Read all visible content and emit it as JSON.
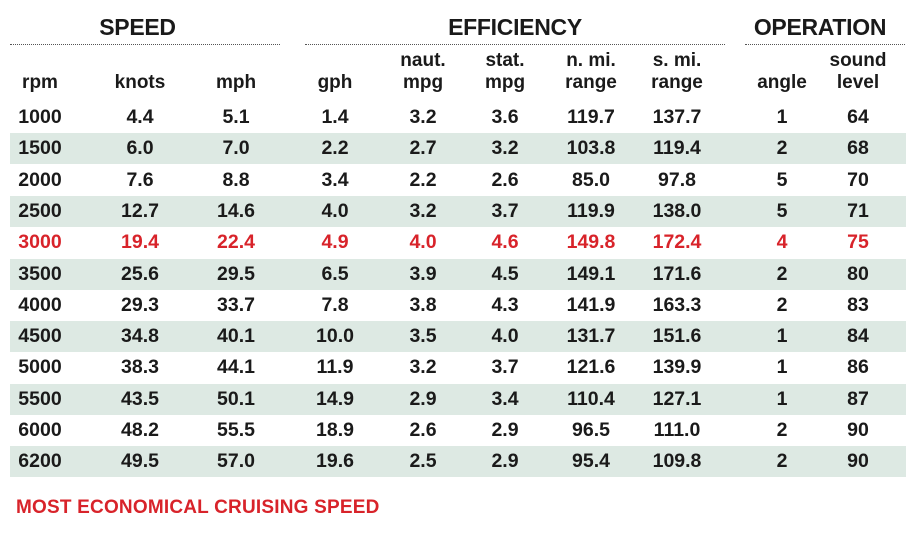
{
  "chart_data": {
    "type": "table",
    "groups": [
      {
        "label": "SPEED"
      },
      {
        "label": "EFFICIENCY"
      },
      {
        "label": "OPERATION"
      }
    ],
    "columns": [
      "rpm",
      "knots",
      "mph",
      "gph",
      "naut.\nmpg",
      "stat.\nmpg",
      "n. mi.\nrange",
      "s. mi.\nrange",
      "angle",
      "sound\nlevel"
    ],
    "rows": [
      [
        "1000",
        "4.4",
        "5.1",
        "1.4",
        "3.2",
        "3.6",
        "119.7",
        "137.7",
        "1",
        "64"
      ],
      [
        "1500",
        "6.0",
        "7.0",
        "2.2",
        "2.7",
        "3.2",
        "103.8",
        "119.4",
        "2",
        "68"
      ],
      [
        "2000",
        "7.6",
        "8.8",
        "3.4",
        "2.2",
        "2.6",
        "85.0",
        "97.8",
        "5",
        "70"
      ],
      [
        "2500",
        "12.7",
        "14.6",
        "4.0",
        "3.2",
        "3.7",
        "119.9",
        "138.0",
        "5",
        "71"
      ],
      [
        "3000",
        "19.4",
        "22.4",
        "4.9",
        "4.0",
        "4.6",
        "149.8",
        "172.4",
        "4",
        "75"
      ],
      [
        "3500",
        "25.6",
        "29.5",
        "6.5",
        "3.9",
        "4.5",
        "149.1",
        "171.6",
        "2",
        "80"
      ],
      [
        "4000",
        "29.3",
        "33.7",
        "7.8",
        "3.8",
        "4.3",
        "141.9",
        "163.3",
        "2",
        "83"
      ],
      [
        "4500",
        "34.8",
        "40.1",
        "10.0",
        "3.5",
        "4.0",
        "131.7",
        "151.6",
        "1",
        "84"
      ],
      [
        "5000",
        "38.3",
        "44.1",
        "11.9",
        "3.2",
        "3.7",
        "121.6",
        "139.9",
        "1",
        "86"
      ],
      [
        "5500",
        "43.5",
        "50.1",
        "14.9",
        "2.9",
        "3.4",
        "110.4",
        "127.1",
        "1",
        "87"
      ],
      [
        "6000",
        "48.2",
        "55.5",
        "18.9",
        "2.6",
        "2.9",
        "96.5",
        "111.0",
        "2",
        "90"
      ],
      [
        "6200",
        "49.5",
        "57.0",
        "19.6",
        "2.5",
        "2.9",
        "95.4",
        "109.8",
        "2",
        "90"
      ]
    ],
    "highlight_row": 4,
    "highlight_color": "#d8232a",
    "shade_color": "#dde9e3",
    "footnote": "MOST ECONOMICAL CRUISING SPEED"
  }
}
